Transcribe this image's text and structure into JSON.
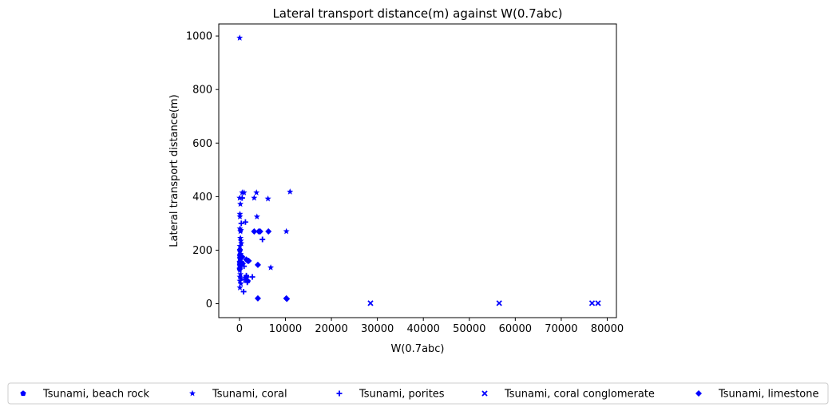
{
  "chart_data": {
    "type": "scatter",
    "title": "Lateral transport distance(m) against W(0.7abc)",
    "xlabel": "W(0.7abc)",
    "ylabel": "Lateral transport distance(m)",
    "xlim": [
      -4500,
      82000
    ],
    "ylim": [
      -52,
      1045
    ],
    "xticks": [
      0,
      10000,
      20000,
      30000,
      40000,
      50000,
      60000,
      70000,
      80000
    ],
    "yticks": [
      0,
      200,
      400,
      600,
      800,
      1000
    ],
    "grid": false,
    "legend_position": "bottom",
    "marker_color": "#0000ff",
    "series": [
      {
        "name": "Tsunami, beach rock",
        "marker": "pentagon",
        "points": [
          [
            30,
            130
          ],
          [
            50,
            155
          ],
          [
            80,
            180
          ],
          [
            100,
            200
          ],
          [
            120,
            170
          ],
          [
            60,
            145
          ]
        ]
      },
      {
        "name": "Tsunami, coral",
        "marker": "star",
        "points": [
          [
            50,
            993
          ],
          [
            600,
            415
          ],
          [
            1000,
            415
          ],
          [
            3700,
            415
          ],
          [
            11000,
            418
          ],
          [
            6200,
            392
          ],
          [
            3200,
            395
          ],
          [
            50,
            395
          ],
          [
            200,
            372
          ],
          [
            100,
            335
          ],
          [
            100,
            325
          ],
          [
            3800,
            325
          ],
          [
            100,
            280
          ],
          [
            200,
            270
          ],
          [
            300,
            275
          ],
          [
            10200,
            270
          ],
          [
            200,
            245
          ],
          [
            300,
            235
          ],
          [
            400,
            225
          ],
          [
            100,
            215
          ],
          [
            100,
            195
          ],
          [
            250,
            185
          ],
          [
            300,
            170
          ],
          [
            400,
            155
          ],
          [
            300,
            140
          ],
          [
            6800,
            135
          ],
          [
            100,
            125
          ],
          [
            200,
            110
          ],
          [
            100,
            100
          ],
          [
            300,
            95
          ],
          [
            100,
            85
          ],
          [
            300,
            75
          ],
          [
            100,
            60
          ]
        ]
      },
      {
        "name": "Tsunami, porites",
        "marker": "plus",
        "points": [
          [
            600,
            395
          ],
          [
            1300,
            305
          ],
          [
            400,
            300
          ],
          [
            5000,
            240
          ],
          [
            1000,
            140
          ],
          [
            1500,
            105
          ],
          [
            2800,
            100
          ],
          [
            1000,
            90
          ],
          [
            900,
            45
          ],
          [
            1700,
            80
          ]
        ]
      },
      {
        "name": "Tsunami, coral conglomerate",
        "marker": "x",
        "points": [
          [
            28500,
            2
          ],
          [
            56500,
            2
          ],
          [
            76700,
            2
          ],
          [
            78000,
            2
          ]
        ]
      },
      {
        "name": "Tsunami, limestone",
        "marker": "diamond",
        "points": [
          [
            3200,
            270
          ],
          [
            4200,
            270
          ],
          [
            4500,
            270
          ],
          [
            6300,
            270
          ],
          [
            4000,
            145
          ],
          [
            1500,
            165
          ],
          [
            1800,
            160
          ],
          [
            2000,
            160
          ],
          [
            600,
            175
          ],
          [
            700,
            150
          ],
          [
            1500,
            100
          ],
          [
            1800,
            85
          ],
          [
            4000,
            20
          ],
          [
            10200,
            20
          ],
          [
            10300,
            18
          ]
        ]
      }
    ]
  }
}
